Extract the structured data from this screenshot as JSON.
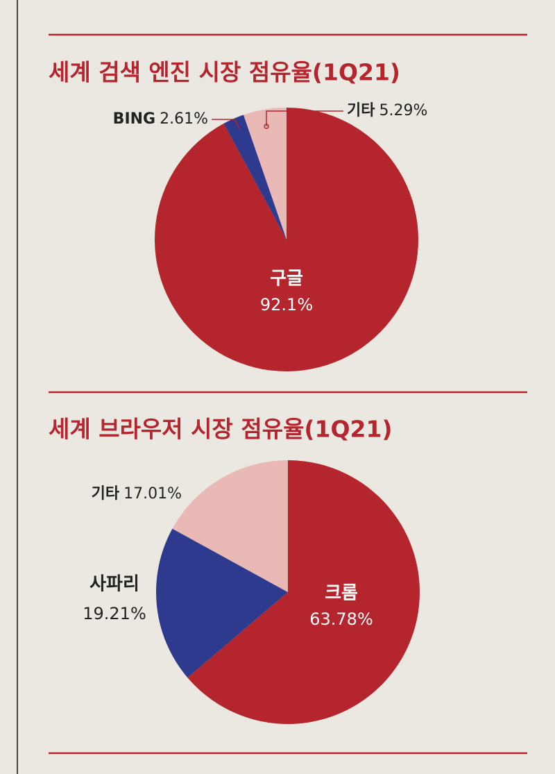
{
  "chart_data": [
    {
      "type": "pie",
      "title": "세계 검색 엔진 시장 점유율(1Q21)",
      "categories": [
        "구글",
        "BING",
        "기타"
      ],
      "values": [
        92.1,
        2.61,
        5.29
      ],
      "value_labels": [
        "92.1%",
        "2.61%",
        "5.29%"
      ],
      "colors": [
        "#b5252d",
        "#2d3a8e",
        "#e9b9b6"
      ]
    },
    {
      "type": "pie",
      "title": "세계 브라우저 시장 점유율(1Q21)",
      "categories": [
        "크롬",
        "사파리",
        "기타"
      ],
      "values": [
        63.78,
        19.21,
        17.01
      ],
      "value_labels": [
        "63.78%",
        "19.21%",
        "17.01%"
      ],
      "colors": [
        "#b5252d",
        "#2d3a8e",
        "#e9b9b6"
      ]
    }
  ]
}
